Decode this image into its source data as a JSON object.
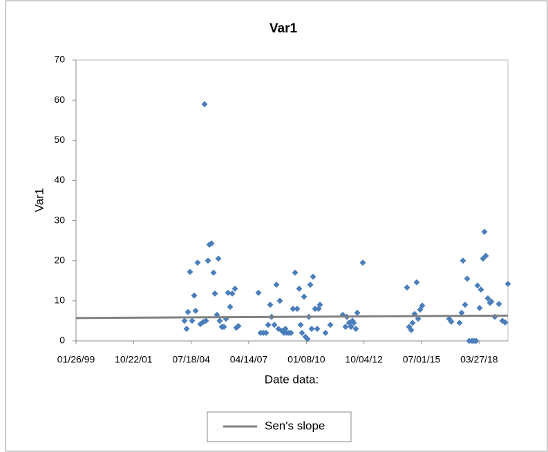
{
  "chart_data": {
    "type": "scatter",
    "title": "Var1",
    "x_label": "Date data:",
    "y_label": "Var1",
    "xlim": [
      36186,
      43686
    ],
    "xticks": [
      {
        "value": 36186,
        "label": "01/26/99"
      },
      {
        "value": 37186,
        "label": "10/22/01"
      },
      {
        "value": 38186,
        "label": "07/18/04"
      },
      {
        "value": 39186,
        "label": "04/14/07"
      },
      {
        "value": 40186,
        "label": "01/08/10"
      },
      {
        "value": 41186,
        "label": "10/04/12"
      },
      {
        "value": 42186,
        "label": "07/01/15"
      },
      {
        "value": 43186,
        "label": "03/27/18"
      }
    ],
    "ylim": [
      0,
      70
    ],
    "yticks": [
      0,
      10,
      20,
      30,
      40,
      50,
      60,
      70
    ],
    "grid": false,
    "legend": "bottom",
    "series": [
      {
        "color": "#4a7ebb",
        "x": [
          38070,
          38106,
          38130,
          38166,
          38202,
          38238,
          38262,
          38298,
          38346,
          38394,
          38418,
          38442,
          38478,
          38502,
          38538,
          38574,
          38598,
          38634,
          38658,
          38682,
          38718,
          38754,
          38790,
          38826,
          38862,
          38898,
          38946,
          38970,
          39006,
          39354,
          39390,
          39438,
          39486,
          39522,
          39558,
          39582,
          39630,
          39666,
          39702,
          39726,
          39762,
          39798,
          39822,
          39846,
          39882,
          39918,
          39954,
          39990,
          40026,
          40062,
          40086,
          40110,
          40146,
          40170,
          40206,
          40230,
          40254,
          40278,
          40302,
          40338,
          40374,
          40398,
          40422,
          40518,
          40602,
          40818,
          40866,
          40890,
          40926,
          40962,
          40986,
          41010,
          41046,
          41070,
          41166,
          41934,
          41970,
          42006,
          42030,
          42066,
          42102,
          42126,
          42162,
          42198,
          42666,
          42702,
          42846,
          42882,
          42906,
          42942,
          42978,
          43014,
          43062,
          43098,
          43134,
          43158,
          43194,
          43218,
          43254,
          43278,
          43302,
          43338,
          43374,
          43398,
          43458,
          43530,
          43590,
          43638,
          43686
        ],
        "values": [
          5,
          3,
          7.2,
          17.2,
          5,
          11.3,
          7.5,
          19.5,
          4.2,
          4.7,
          59,
          5,
          20,
          24,
          24.3,
          17,
          11.8,
          6.5,
          20.5,
          5,
          3.5,
          3.5,
          5.5,
          12,
          8.5,
          11.8,
          13,
          3.3,
          3.7,
          12,
          2,
          2,
          2,
          4,
          9,
          6,
          4,
          14,
          3,
          10,
          2.5,
          2,
          3,
          2,
          2,
          2,
          8,
          17,
          8,
          13,
          4,
          2,
          11,
          1,
          0.5,
          6,
          14,
          3,
          16,
          8,
          3,
          8,
          9,
          2,
          4,
          6.5,
          3.5,
          6,
          4.5,
          3.5,
          5,
          4.5,
          3,
          7,
          19.5,
          13.3,
          3.5,
          2.7,
          4.5,
          6.7,
          14.6,
          5.5,
          7.8,
          8.8,
          5.5,
          4.8,
          4.5,
          7,
          20,
          9,
          15.5,
          0,
          0,
          0,
          0,
          13.8,
          8.2,
          12.8,
          20.5,
          27.2,
          21.2,
          10.6,
          9.5,
          9.8,
          6,
          9.2,
          5,
          4.6,
          14.2
        ]
      },
      {
        "name": "Sen's slope",
        "type": "line",
        "color": "#808080",
        "x": [
          36186,
          43686
        ],
        "values": [
          5.7,
          6.3
        ]
      }
    ]
  }
}
